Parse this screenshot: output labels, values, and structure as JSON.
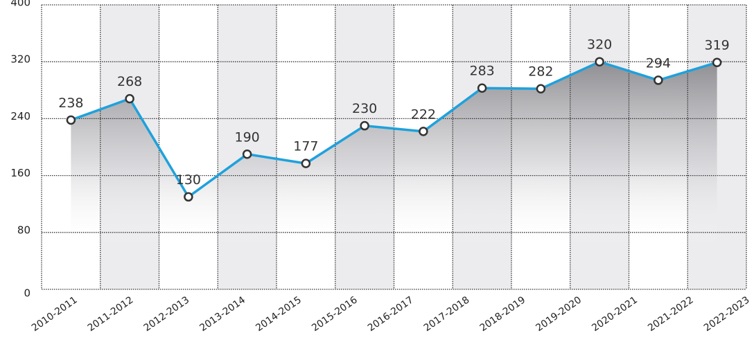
{
  "chart_data": {
    "type": "line",
    "categories": [
      "2010-2011",
      "2011-2012",
      "2012-2013",
      "2013-2014",
      "2014-2015",
      "2015-2016",
      "2016-2017",
      "2017-2018",
      "2018-2019",
      "2019-2020",
      "2020-2021",
      "2021-2022",
      "2022-2023"
    ],
    "values": [
      238,
      268,
      130,
      190,
      177,
      230,
      222,
      283,
      282,
      320,
      294,
      319,
      null
    ],
    "color": "#1ea1dc",
    "ylim": [
      0,
      400
    ],
    "yticks": [
      0,
      80,
      160,
      240,
      320,
      400
    ],
    "grid": true
  }
}
